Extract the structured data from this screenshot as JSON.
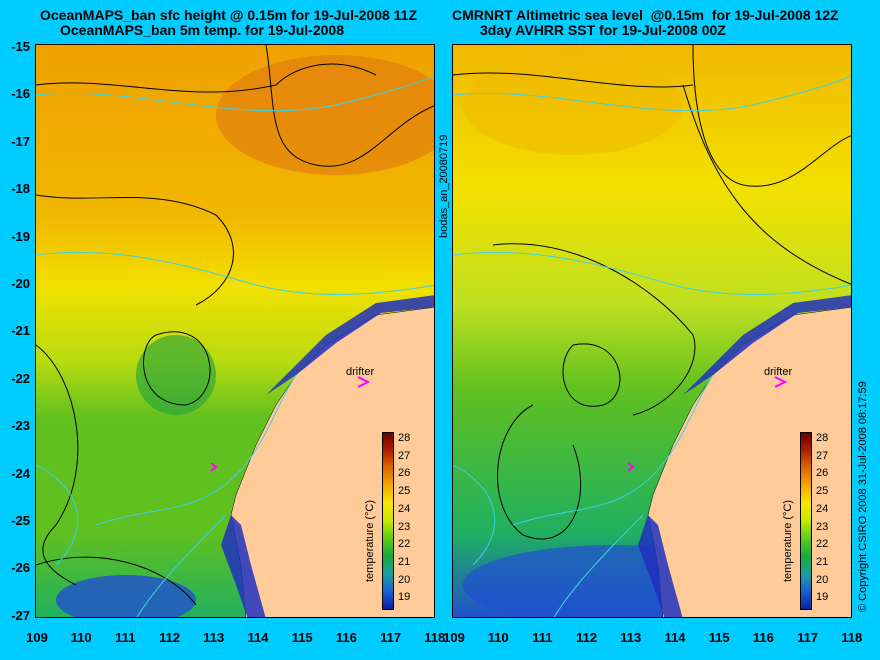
{
  "left_title": {
    "line1": "OceanMAPS_ban sfc height @ 0.15m for 19-Jul-2008 11Z",
    "line2": "OceanMAPS_ban 5m temp. for 19-Jul-2008"
  },
  "right_title": {
    "line1": "CMRNRT Altimetric sea level  @0.15m  for 19-Jul-2008 12Z",
    "line2": "3day AVHRR SST for 19-Jul-2008 00Z"
  },
  "y_ticks": [
    "-15",
    "-16",
    "-17",
    "-18",
    "-19",
    "-20",
    "-21",
    "-22",
    "-23",
    "-24",
    "-25",
    "-26",
    "-27"
  ],
  "x_ticks_left": [
    "109",
    "110",
    "111",
    "112",
    "113",
    "114",
    "115",
    "116",
    "117",
    "118"
  ],
  "x_ticks_right": [
    "109",
    "110",
    "111",
    "112",
    "113",
    "114",
    "115",
    "116",
    "117",
    "118"
  ],
  "drifter_label": "drifter",
  "colorbar": {
    "label": "temperature (°C)",
    "ticks": [
      "28",
      "27",
      "26",
      "25",
      "24",
      "23",
      "22",
      "21",
      "20",
      "19"
    ],
    "colors": [
      "#6b0000",
      "#b02000",
      "#e06a00",
      "#f5a800",
      "#f5e800",
      "#c8e800",
      "#5ccc1a",
      "#1aaa3a",
      "#18a0a0",
      "#1a60d0",
      "#1020a0"
    ]
  },
  "side_text": "bodas_an_20080719",
  "copyright": "© Copyright CSIRO 2008   31-Jul-2008 08:17:59",
  "map_colors": {
    "warm": "#f0a000",
    "hot": "#e07810",
    "yellow": "#f2e000",
    "green": "#60c020",
    "cyan_green": "#20b060",
    "blue": "#2050d0",
    "land": "#ffcc99",
    "contour": "#000000",
    "bathy": "#40d0e0",
    "drifter": "#ff00ff"
  }
}
